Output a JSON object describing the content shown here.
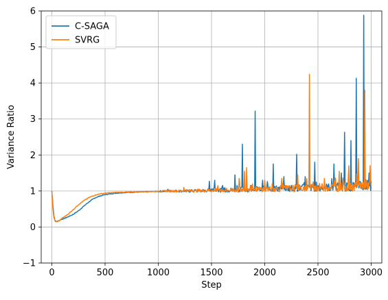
{
  "chart_data": {
    "type": "line",
    "title": "",
    "xlabel": "Step",
    "ylabel": "Variance Ratio",
    "xlim": [
      -100,
      3100
    ],
    "ylim": [
      -1,
      6
    ],
    "xticks": [
      0,
      500,
      1000,
      1500,
      2000,
      2500,
      3000
    ],
    "yticks": [
      -1,
      0,
      1,
      2,
      3,
      4,
      5,
      6
    ],
    "grid": true,
    "legend_position": "upper-left",
    "series": [
      {
        "name": "C-SAGA",
        "color": "#1f77b4",
        "x": [
          0,
          10,
          20,
          30,
          40,
          60,
          80,
          100,
          150,
          200,
          250,
          300,
          350,
          400,
          450,
          500,
          550,
          600,
          700,
          800,
          900,
          1000,
          1100,
          1200,
          1300,
          1400,
          1500,
          1600,
          1700,
          1750,
          1800,
          1850,
          1900,
          1950,
          2000,
          2100,
          2200,
          2300,
          2400,
          2500,
          2600,
          2700,
          2800,
          2850,
          2900,
          2950,
          3000
        ],
        "values": [
          1.0,
          0.6,
          0.3,
          0.18,
          0.15,
          0.17,
          0.2,
          0.22,
          0.28,
          0.35,
          0.45,
          0.58,
          0.7,
          0.8,
          0.86,
          0.9,
          0.92,
          0.94,
          0.96,
          0.97,
          0.98,
          0.99,
          1.0,
          1.0,
          1.0,
          1.01,
          1.02,
          1.02,
          1.03,
          1.04,
          1.05,
          1.04,
          1.06,
          1.05,
          1.06,
          1.07,
          1.08,
          1.08,
          1.09,
          1.1,
          1.1,
          1.12,
          1.12,
          1.14,
          1.15,
          1.14,
          1.15
        ],
        "spikes": [
          {
            "x": 1090,
            "y": 1.05
          },
          {
            "x": 1480,
            "y": 1.27
          },
          {
            "x": 1530,
            "y": 1.3
          },
          {
            "x": 1720,
            "y": 1.45
          },
          {
            "x": 1790,
            "y": 2.3
          },
          {
            "x": 1910,
            "y": 3.22
          },
          {
            "x": 1980,
            "y": 1.3
          },
          {
            "x": 2080,
            "y": 1.75
          },
          {
            "x": 2180,
            "y": 1.4
          },
          {
            "x": 2300,
            "y": 2.02
          },
          {
            "x": 2380,
            "y": 1.4
          },
          {
            "x": 2470,
            "y": 1.8
          },
          {
            "x": 2650,
            "y": 1.75
          },
          {
            "x": 2720,
            "y": 1.5
          },
          {
            "x": 2750,
            "y": 2.63
          },
          {
            "x": 2810,
            "y": 2.4
          },
          {
            "x": 2860,
            "y": 4.13
          },
          {
            "x": 2930,
            "y": 5.88
          },
          {
            "x": 2980,
            "y": 1.5
          }
        ]
      },
      {
        "name": "SVRG",
        "color": "#ff7f0e",
        "x": [
          0,
          10,
          20,
          30,
          40,
          60,
          80,
          100,
          150,
          200,
          250,
          300,
          350,
          400,
          450,
          500,
          550,
          600,
          700,
          800,
          900,
          1000,
          1100,
          1200,
          1300,
          1400,
          1500,
          1600,
          1700,
          1750,
          1800,
          1850,
          1900,
          1950,
          2000,
          2100,
          2200,
          2300,
          2400,
          2500,
          2600,
          2700,
          2800,
          2850,
          2900,
          2950,
          3000
        ],
        "values": [
          1.0,
          0.5,
          0.25,
          0.17,
          0.14,
          0.16,
          0.2,
          0.25,
          0.35,
          0.48,
          0.62,
          0.73,
          0.82,
          0.88,
          0.92,
          0.94,
          0.95,
          0.96,
          0.97,
          0.98,
          0.98,
          0.99,
          1.0,
          1.0,
          1.01,
          1.01,
          1.02,
          1.02,
          1.03,
          1.03,
          1.04,
          1.05,
          1.05,
          1.05,
          1.06,
          1.06,
          1.07,
          1.08,
          1.08,
          1.1,
          1.1,
          1.11,
          1.12,
          1.13,
          1.15,
          1.15,
          1.18
        ],
        "spikes": [
          {
            "x": 1240,
            "y": 1.1
          },
          {
            "x": 1560,
            "y": 1.15
          },
          {
            "x": 1760,
            "y": 1.35
          },
          {
            "x": 1810,
            "y": 1.55
          },
          {
            "x": 1830,
            "y": 1.65
          },
          {
            "x": 2000,
            "y": 1.3
          },
          {
            "x": 2160,
            "y": 1.35
          },
          {
            "x": 2310,
            "y": 1.45
          },
          {
            "x": 2420,
            "y": 4.24
          },
          {
            "x": 2560,
            "y": 1.35
          },
          {
            "x": 2700,
            "y": 1.55
          },
          {
            "x": 2790,
            "y": 1.7
          },
          {
            "x": 2880,
            "y": 1.9
          },
          {
            "x": 2940,
            "y": 3.8
          },
          {
            "x": 2990,
            "y": 1.7
          }
        ]
      }
    ]
  }
}
